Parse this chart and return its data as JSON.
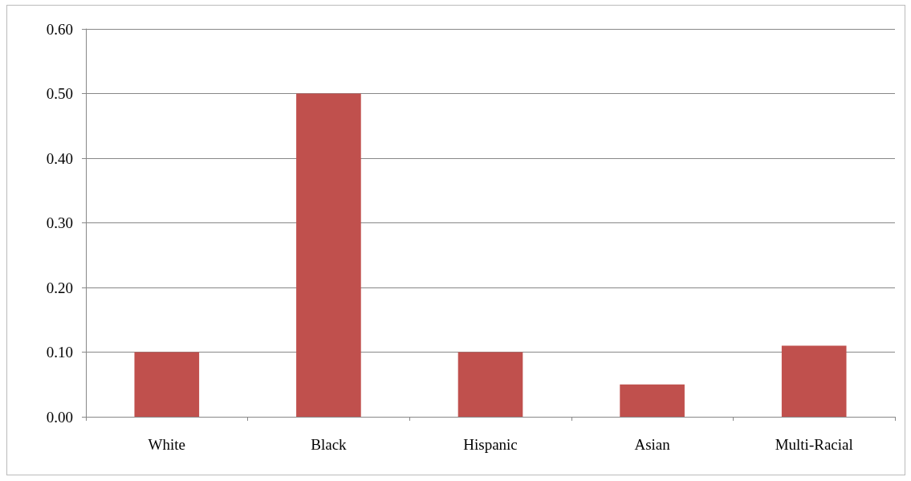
{
  "chart_data": {
    "type": "bar",
    "categories": [
      "White",
      "Black",
      "Hispanic",
      "Asian",
      "Multi-Racial"
    ],
    "values": [
      0.1,
      0.5,
      0.1,
      0.05,
      0.11
    ],
    "color": "#c0504d",
    "ylim": [
      0,
      0.6
    ],
    "yticks": [
      {
        "value": 0,
        "label": "0.00"
      },
      {
        "value": 0.1,
        "label": "0.10"
      },
      {
        "value": 0.2,
        "label": "0.20"
      },
      {
        "value": 0.3,
        "label": "0.30"
      },
      {
        "value": 0.4,
        "label": "0.40"
      },
      {
        "value": 0.5,
        "label": "0.50"
      },
      {
        "value": 0.6,
        "label": "0.60"
      }
    ],
    "grid": "y"
  }
}
